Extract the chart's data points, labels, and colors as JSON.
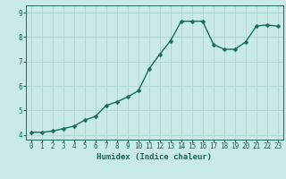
{
  "x": [
    0,
    1,
    2,
    3,
    4,
    5,
    6,
    7,
    8,
    9,
    10,
    11,
    12,
    13,
    14,
    15,
    16,
    17,
    18,
    19,
    20,
    21,
    22,
    23
  ],
  "y": [
    4.1,
    4.1,
    4.15,
    4.25,
    4.35,
    4.6,
    4.75,
    5.2,
    5.35,
    5.55,
    5.8,
    6.7,
    7.3,
    7.85,
    8.65,
    8.65,
    8.65,
    7.7,
    7.5,
    7.5,
    7.8,
    8.45,
    8.5,
    8.45
  ],
  "bg_color": "#c8ebe8",
  "line_color": "#1a6b5e",
  "marker_color": "#1a6b5e",
  "grid_color": "#a8d5d0",
  "xlabel": "Humidex (Indice chaleur)",
  "xlim": [
    -0.5,
    23.5
  ],
  "ylim": [
    3.8,
    9.3
  ],
  "yticks": [
    4,
    5,
    6,
    7,
    8,
    9
  ],
  "xticks": [
    0,
    1,
    2,
    3,
    4,
    5,
    6,
    7,
    8,
    9,
    10,
    11,
    12,
    13,
    14,
    15,
    16,
    17,
    18,
    19,
    20,
    21,
    22,
    23
  ],
  "line_width": 1.0,
  "marker_size": 2.5,
  "font_color": "#1a6b5e",
  "xlabel_fontsize": 6.5,
  "tick_fontsize": 5.5
}
